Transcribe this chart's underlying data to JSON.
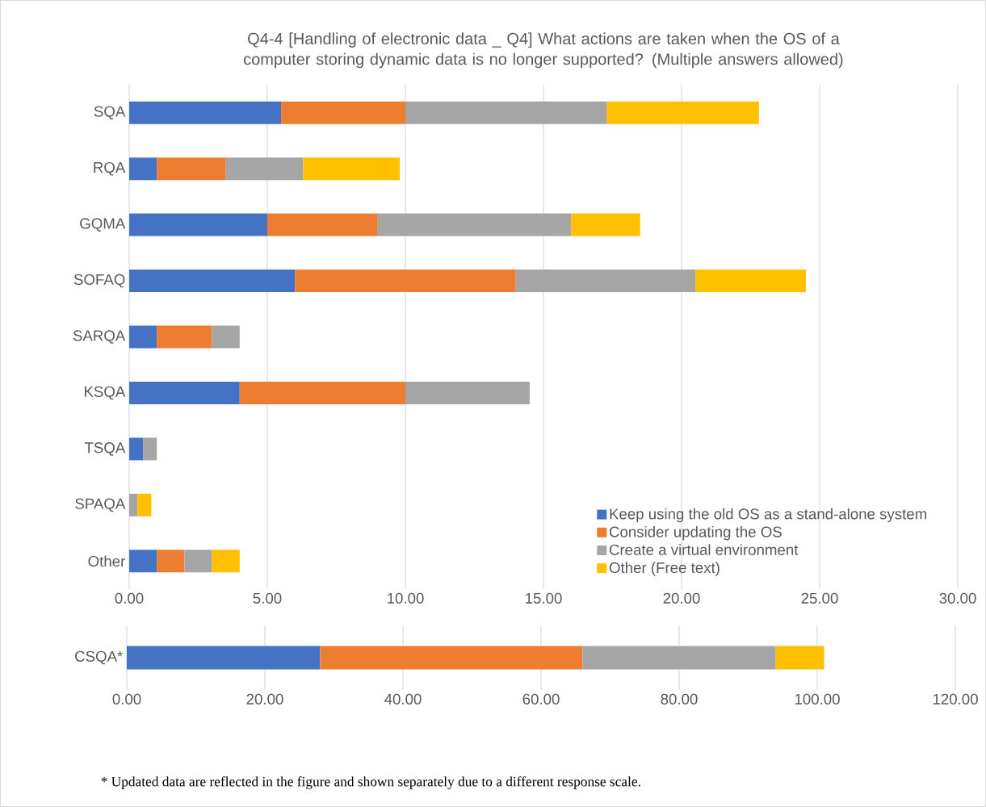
{
  "chart_data": [
    {
      "type": "bar",
      "orientation": "horizontal",
      "stacked": true,
      "title": "Q4-4 [Handling of electronic data _ Q4] What actions are taken when the OS of a computer storing dynamic data is no longer supported? (Multiple answers allowed)",
      "categories": [
        "SQA",
        "RQA",
        "GQMA",
        "SOFAQ",
        "SARQA",
        "KSQA",
        "TSQA",
        "SPAQA",
        "Other"
      ],
      "series": [
        {
          "name": "Keep using the old OS as a stand-alone system",
          "color": "#4472c4",
          "values": [
            5.5,
            1,
            5,
            6,
            1,
            4,
            0.5,
            null,
            1
          ]
        },
        {
          "name": "Consider updating the OS",
          "color": "#ed7d31",
          "values": [
            4.5,
            2.5,
            4,
            8,
            2,
            6,
            null,
            null,
            1
          ]
        },
        {
          "name": "Create a virtual environment",
          "color": "#a5a5a5",
          "values": [
            7.3,
            2.8,
            7,
            6.5,
            1,
            4.5,
            0.5,
            0.3,
            1
          ]
        },
        {
          "name": "Other (Free text)",
          "color": "#ffc000",
          "values": [
            5.5,
            3.5,
            2.5,
            4,
            null,
            null,
            null,
            0.5,
            1
          ]
        }
      ],
      "xlim": [
        0,
        30
      ],
      "xticks": [
        {
          "value": 0,
          "label": "0.00"
        },
        {
          "value": 5,
          "label": "5.00"
        },
        {
          "value": 10,
          "label": "10.00"
        },
        {
          "value": 15,
          "label": "15.00"
        },
        {
          "value": 20,
          "label": "20.00"
        },
        {
          "value": 25,
          "label": "25.00"
        },
        {
          "value": 30,
          "label": "30.00"
        }
      ],
      "grid": "x",
      "legend": "bottom right"
    },
    {
      "type": "bar",
      "orientation": "horizontal",
      "stacked": true,
      "categories": [
        "CSQA*"
      ],
      "series": [
        {
          "color": "#4472c4",
          "values": [
            28
          ]
        },
        {
          "color": "#ed7d31",
          "values": [
            38
          ]
        },
        {
          "color": "#a5a5a5",
          "values": [
            28
          ]
        },
        {
          "color": "#ffc000",
          "values": [
            7
          ]
        }
      ],
      "xlim": [
        0,
        120
      ],
      "xticks": [
        {
          "value": 0,
          "label": "0.00"
        },
        {
          "value": 20,
          "label": "20.00"
        },
        {
          "value": 40,
          "label": "40.00"
        },
        {
          "value": 60,
          "label": "60.00"
        },
        {
          "value": 80,
          "label": "80.00"
        },
        {
          "value": 100,
          "label": "100.00"
        },
        {
          "value": 120,
          "label": "120.00"
        }
      ],
      "grid": "x",
      "annotations": [
        "* Updated data are reflected in the figure and shown separately due to a different response scale."
      ]
    }
  ]
}
